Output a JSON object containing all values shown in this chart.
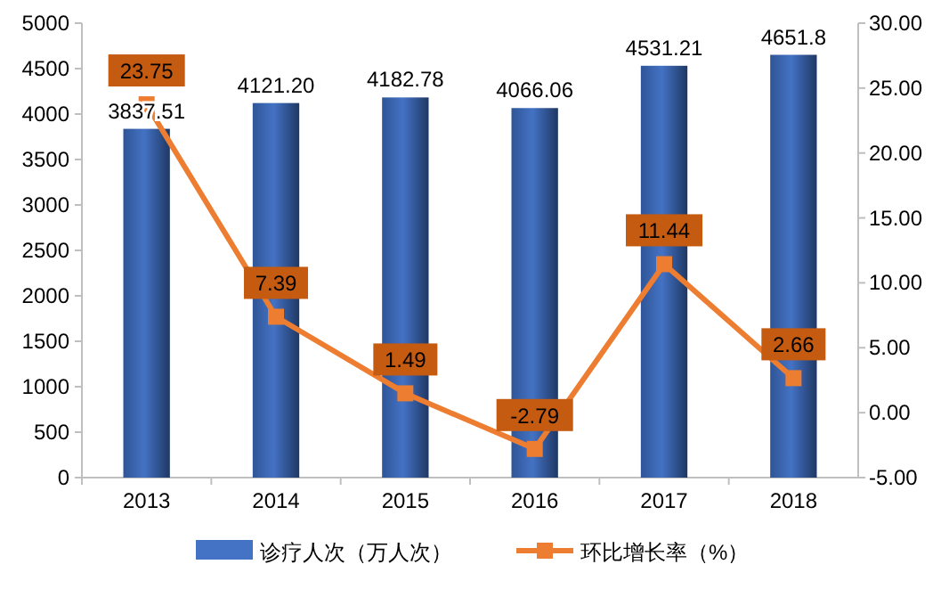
{
  "chart_data": {
    "type": "bar",
    "categories": [
      "2013",
      "2014",
      "2015",
      "2016",
      "2017",
      "2018"
    ],
    "series": [
      {
        "name": "诊疗人次（万人次）",
        "color": "#4472c4",
        "values": [
          3837.51,
          4121.2,
          4182.78,
          4066.06,
          4531.21,
          4651.8
        ],
        "value_labels": [
          "3837.51",
          "4121.20",
          "4182.78",
          "4066.06",
          "4531.21",
          "4651.8"
        ]
      },
      {
        "name": "环比增长率（%）",
        "type": "line",
        "axis": "y2",
        "color": "#ed7d31",
        "marker": "square",
        "values": [
          23.75,
          7.39,
          1.49,
          -2.79,
          11.44,
          2.66
        ],
        "value_labels": [
          "23.75",
          "7.39",
          "1.49",
          "-2.79",
          "11.44",
          "2.66"
        ]
      }
    ],
    "ylim": [
      0,
      5000
    ],
    "yticks": [
      0,
      500,
      1000,
      1500,
      2000,
      2500,
      3000,
      3500,
      4000,
      4500,
      5000
    ],
    "y2lim": [
      -5,
      30
    ],
    "y2ticks": [
      {
        "value": -5,
        "label": "-5.00"
      },
      {
        "value": 0,
        "label": "0.00"
      },
      {
        "value": 5,
        "label": "5.00"
      },
      {
        "value": 10,
        "label": "10.00"
      },
      {
        "value": 15,
        "label": "15.00"
      },
      {
        "value": 20,
        "label": "20.00"
      },
      {
        "value": 25,
        "label": "25.00"
      },
      {
        "value": 30,
        "label": "30.00"
      }
    ],
    "legend": "bottom"
  }
}
